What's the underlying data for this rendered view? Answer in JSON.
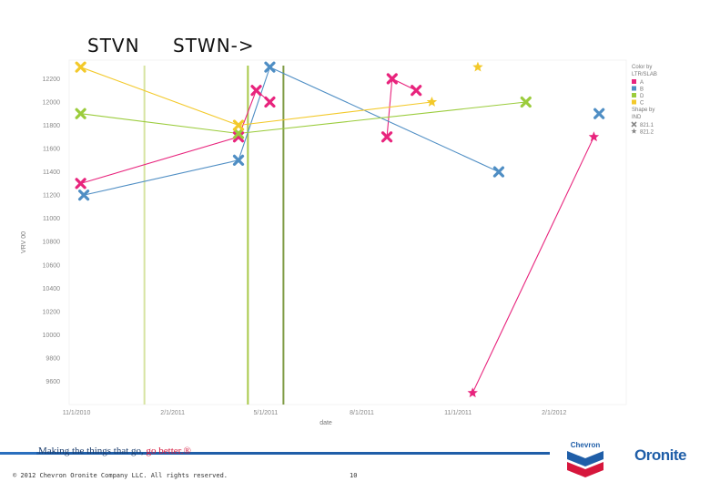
{
  "header": {
    "left_label": "STVN",
    "right_label": "STWN->"
  },
  "footer": {
    "tagline_main": "Making the things that go, ",
    "tagline_accent": "go better.",
    "tagline_mark": "®",
    "copyright": "© 2012 Chevron Oronite Company LLC. All rights reserved.",
    "page_number": "10",
    "chevron_logo_text": "Chevron",
    "oronite_logo_text": "Oronite"
  },
  "chart_data": {
    "type": "scatter",
    "xlabel": "date",
    "ylabel": "VRV 00",
    "x_ticks": [
      "11/1/2010",
      "2/1/2011",
      "5/1/2011",
      "8/1/2011",
      "11/1/2011",
      "2/1/2012"
    ],
    "x_range": [
      "2010-10-25",
      "2012-04-10"
    ],
    "y_ticks": [
      12200,
      12000,
      11800,
      11600,
      11400,
      11200,
      11000,
      10800,
      10600,
      10400,
      10200,
      10000,
      9800,
      9600
    ],
    "y_range": [
      9400,
      12360
    ],
    "grid": false,
    "colors": {
      "A": "#e8247d",
      "B": "#4f8ec4",
      "D": "#9bcc3c",
      "C": "#f3c92a"
    },
    "vertical_lines": [
      {
        "date": "2011-01-05",
        "color": "#d7e4a2"
      },
      {
        "date": "2011-04-14",
        "color": "#a8c94a"
      },
      {
        "date": "2011-05-18",
        "color": "#7f9b44"
      }
    ],
    "legend": {
      "placement": "top-right",
      "color_title": "Color by",
      "color_subtitle": "LTR/SLAB",
      "color_entries": [
        "A",
        "B",
        "D",
        "C"
      ],
      "shape_title": "Shape by",
      "shape_subtitle": "IND",
      "shape_entries": [
        {
          "label": "821.1",
          "shape": "x"
        },
        {
          "label": "821.2",
          "shape": "star"
        }
      ]
    },
    "series": [
      {
        "color_key": "A",
        "points": [
          {
            "x": "2010-11-05",
            "y": 11300,
            "shape": "x"
          },
          {
            "x": "2011-04-05",
            "y": 11700,
            "shape": "x"
          },
          {
            "x": "2011-04-22",
            "y": 12100,
            "shape": "x"
          },
          {
            "x": "2011-05-05",
            "y": 12000,
            "shape": "x"
          }
        ]
      },
      {
        "color_key": "A",
        "points": [
          {
            "x": "2011-08-25",
            "y": 11700,
            "shape": "x"
          },
          {
            "x": "2011-08-30",
            "y": 12200,
            "shape": "x"
          },
          {
            "x": "2011-09-22",
            "y": 12100,
            "shape": "x"
          }
        ]
      },
      {
        "color_key": "A",
        "points": [
          {
            "x": "2011-11-15",
            "y": 9500,
            "shape": "star"
          },
          {
            "x": "2012-03-10",
            "y": 11700,
            "shape": "star"
          }
        ]
      },
      {
        "color_key": "B",
        "points": [
          {
            "x": "2010-11-08",
            "y": 11200,
            "shape": "x"
          },
          {
            "x": "2011-04-05",
            "y": 11500,
            "shape": "x"
          },
          {
            "x": "2011-05-05",
            "y": 12300,
            "shape": "x"
          },
          {
            "x": "2011-12-10",
            "y": 11400,
            "shape": "x"
          }
        ]
      },
      {
        "color_key": "B",
        "points": [
          {
            "x": "2012-03-15",
            "y": 11900,
            "shape": "x"
          }
        ]
      },
      {
        "color_key": "D",
        "points": [
          {
            "x": "2010-11-05",
            "y": 11900,
            "shape": "x"
          },
          {
            "x": "2011-04-05",
            "y": 11730,
            "shape": "x"
          },
          {
            "x": "2012-01-05",
            "y": 12000,
            "shape": "x"
          }
        ]
      },
      {
        "color_key": "C",
        "points": [
          {
            "x": "2010-11-05",
            "y": 12300,
            "shape": "x"
          },
          {
            "x": "2011-04-05",
            "y": 11800,
            "shape": "x"
          },
          {
            "x": "2011-10-07",
            "y": 12000,
            "shape": "star"
          }
        ]
      },
      {
        "color_key": "C",
        "points": [
          {
            "x": "2011-11-20",
            "y": 12300,
            "shape": "star"
          }
        ]
      }
    ]
  }
}
